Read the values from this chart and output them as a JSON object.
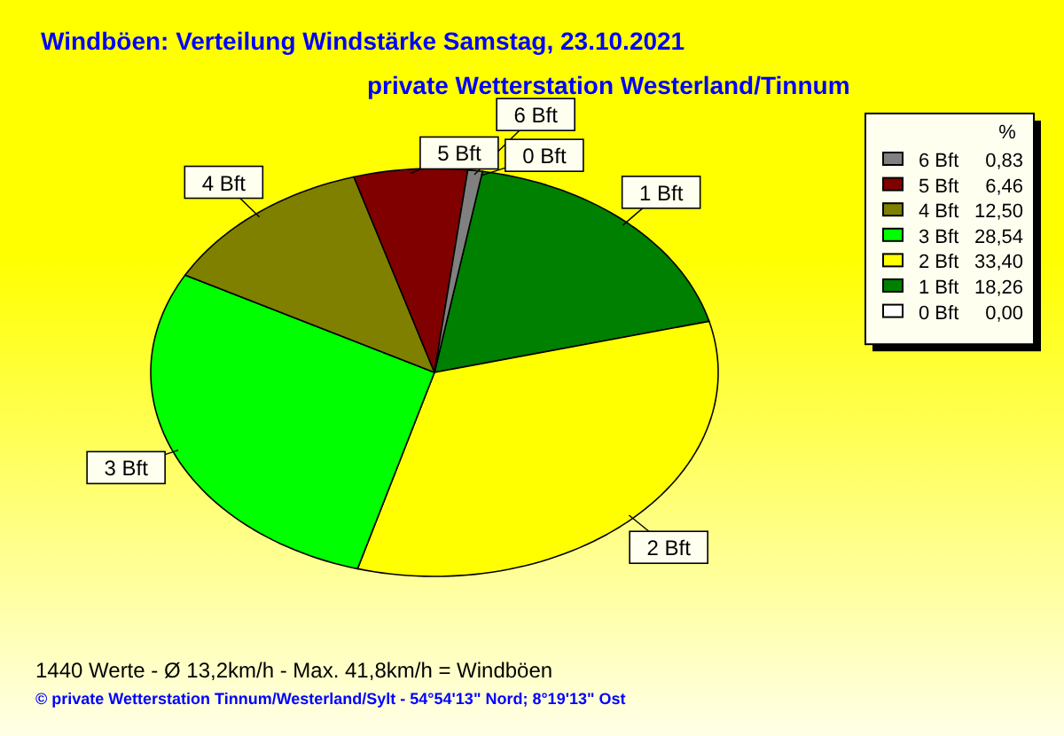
{
  "chart_data": {
    "type": "pie",
    "title": "Windböen: Verteilung Windstärke  Samstag, 23.10.2021",
    "subtitle": "private Wetterstation Westerland/Tinnum",
    "legend_title": "%",
    "categories": [
      "6 Bft",
      "5 Bft",
      "4 Bft",
      "3 Bft",
      "2 Bft",
      "1 Bft",
      "0 Bft"
    ],
    "values": [
      0.83,
      6.46,
      12.5,
      28.54,
      33.4,
      18.26,
      0
    ],
    "value_labels": [
      "0,83",
      "6,46",
      "12,50",
      "28,54",
      "33,40",
      "18,26",
      "0,00"
    ],
    "colors": [
      "#808080",
      "#800000",
      "#808000",
      "#00ff00",
      "#ffff00",
      "#008000",
      "#ffffff"
    ],
    "legend": "right",
    "annotations": [
      "1440 Werte   -   Ø 13,2km/h  -  Max. 41,8km/h = Windböen",
      "© private Wetterstation Tinnum/Westerland/Sylt  -  54°54'13\" Nord; 8°19'13\" Ost"
    ]
  }
}
